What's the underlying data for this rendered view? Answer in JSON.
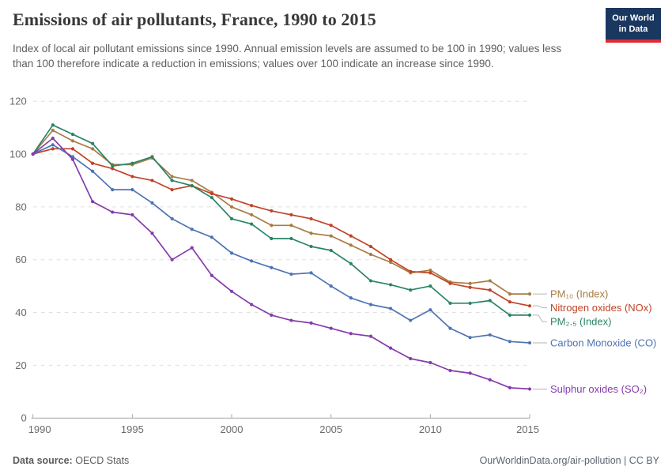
{
  "header": {
    "title": "Emissions of air pollutants, France, 1990 to 2015",
    "subtitle": "Index of local air pollutant emissions since 1990. Annual emission levels are assumed to be 100 in 1990; values less than 100 therefore indicate a reduction in emissions; values over 100 indicate an increase since 1990.",
    "logo": {
      "line1": "Our World",
      "line2": "in Data",
      "bg_color": "#1a3760",
      "stripe_color": "#e02b35"
    }
  },
  "chart_data": {
    "type": "line",
    "title": "Emissions of air pollutants, France, 1990 to 2015",
    "x": [
      1990,
      1991,
      1992,
      1993,
      1994,
      1995,
      1996,
      1997,
      1998,
      1999,
      2000,
      2001,
      2002,
      2003,
      2004,
      2005,
      2006,
      2007,
      2008,
      2009,
      2010,
      2011,
      2012,
      2013,
      2014,
      2015
    ],
    "series": [
      {
        "key": "pm10",
        "name": "PM₁₀ (Index)",
        "color": "#A87C44",
        "values": [
          100,
          109,
          105,
          102,
          96,
          96,
          98.5,
          91.5,
          90,
          85.5,
          80,
          77,
          73,
          73,
          70,
          69,
          65.5,
          62,
          59,
          55,
          56,
          51.5,
          51,
          52,
          47,
          47
        ]
      },
      {
        "key": "nox",
        "name": "Nitrogen oxides (NOx)",
        "color": "#BF4326",
        "values": [
          100,
          102,
          102,
          96.5,
          94.5,
          91.5,
          90,
          86.5,
          88,
          85,
          83,
          80.5,
          78.5,
          77,
          75.5,
          73,
          69,
          65,
          60,
          55.5,
          55,
          51,
          49.5,
          48.5,
          44,
          42.5
        ]
      },
      {
        "key": "pm25",
        "name": "PM₂.₅ (Index)",
        "color": "#2A8465",
        "values": [
          100,
          111,
          107.5,
          104,
          95.5,
          96.5,
          99,
          90,
          88,
          83.5,
          75.5,
          73.5,
          68,
          68,
          65,
          63.5,
          58.5,
          52,
          50.5,
          48.5,
          50,
          43.5,
          43.5,
          44.5,
          39,
          39
        ]
      },
      {
        "key": "co",
        "name": "Carbon Monoxide (CO)",
        "color": "#4E74B2",
        "values": [
          100,
          103.5,
          99,
          93.5,
          86.5,
          86.5,
          81.5,
          75.5,
          71.5,
          68.5,
          62.5,
          59.5,
          57,
          54.5,
          55,
          50,
          45.5,
          43,
          41.5,
          37,
          41,
          34,
          30.5,
          31.5,
          29,
          28.5
        ]
      },
      {
        "key": "so2",
        "name": "Sulphur oxides (SO₂)",
        "color": "#863BAB",
        "values": [
          100,
          106,
          98,
          82,
          78,
          77,
          70,
          60,
          64.5,
          54,
          48,
          43,
          39,
          37,
          36,
          34,
          32,
          31,
          26.5,
          22.5,
          21,
          18,
          17,
          14.5,
          11.5,
          11
        ]
      }
    ],
    "xticks": [
      1990,
      1995,
      2000,
      2005,
      2010,
      2015
    ],
    "yticks": [
      0,
      20,
      40,
      60,
      80,
      100,
      120
    ],
    "xlim": [
      1990,
      2015
    ],
    "ylim": [
      0,
      120
    ],
    "grid": true,
    "legend_position": "right-of-line-ends",
    "colors": {
      "grid": "#e0e0e0",
      "axis": "#a8a8a8",
      "tick_label": "#6b6b6b",
      "connector": "#b5b5b5"
    }
  },
  "footer": {
    "source_label": "Data source:",
    "source_value": "OECD Stats",
    "right_text": "OurWorldinData.org/air-pollution | CC BY"
  }
}
